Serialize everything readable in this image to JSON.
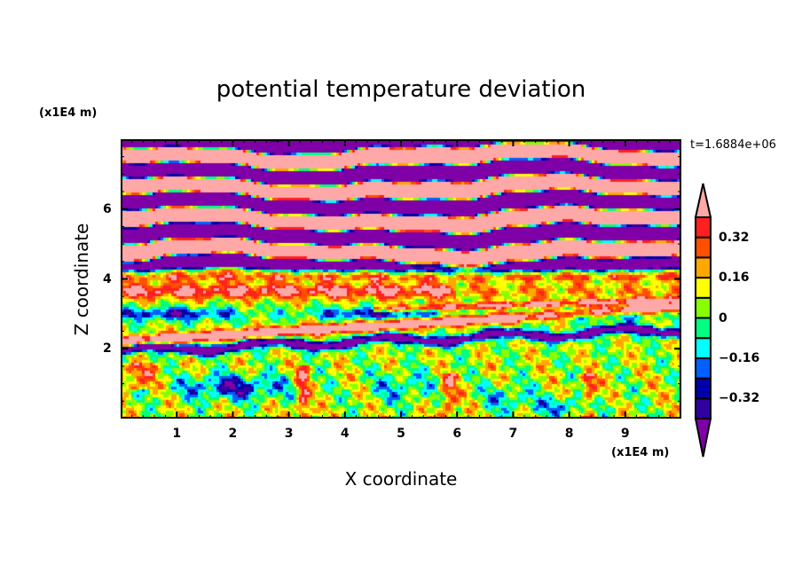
{
  "chart_data": {
    "type": "heatmap",
    "title": "potential temperature deviation",
    "xlabel": "X coordinate",
    "ylabel": "Z coordinate",
    "x_unit": "(x1E4 m)",
    "y_unit": "(x1E4 m)",
    "time_label": "t=1.6884e+06",
    "xlim": [
      0,
      10
    ],
    "ylim": [
      0,
      8
    ],
    "x_ticks": [
      "1",
      "2",
      "3",
      "4",
      "5",
      "6",
      "7",
      "8",
      "9"
    ],
    "y_ticks": [
      "2",
      "4",
      "6"
    ],
    "levels": [
      -0.4,
      -0.32,
      -0.24,
      -0.16,
      -0.08,
      0,
      0.08,
      0.16,
      0.24,
      0.32,
      0.4
    ],
    "colorbar_labels": [
      {
        "value": 0.32,
        "text": "0.32"
      },
      {
        "value": 0.16,
        "text": "0.16"
      },
      {
        "value": 0,
        "text": "0"
      },
      {
        "value": -0.16,
        "text": "−0.16"
      },
      {
        "value": -0.32,
        "text": "−0.32"
      }
    ],
    "colors": [
      "#8000a8",
      "#3000a0",
      "#0000a8",
      "#0060ff",
      "#00ffff",
      "#00ff80",
      "#88ff00",
      "#ffff00",
      "#ffa800",
      "#ff5000",
      "#ff2020",
      "#ffa8a8"
    ],
    "colorbar_extend": "both",
    "legend_placement": "right"
  }
}
